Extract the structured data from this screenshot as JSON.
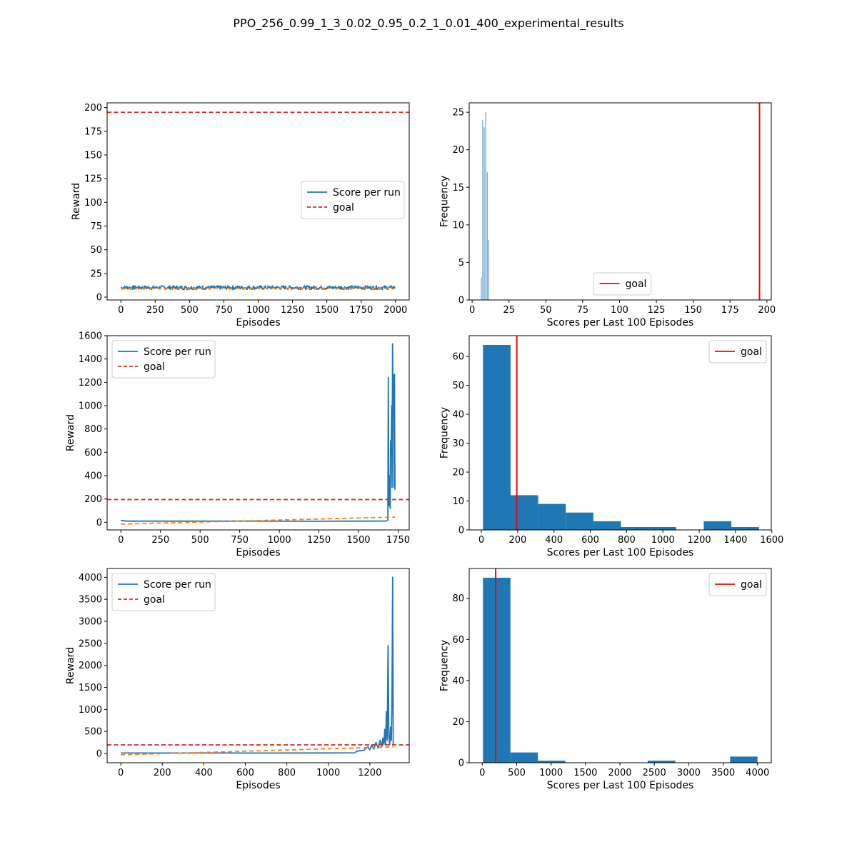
{
  "figure": {
    "suptitle": "PPO_256_0.99_1_3_0.02_0.95_0.2_1_0.01_400_experimental_results"
  },
  "colors": {
    "score": "#1f77b4",
    "trend": "#ff7f0e",
    "goal_dashed": "#d62728",
    "goal_line": "#ff0000",
    "hist": "#1f77b4"
  },
  "chart_data": [
    {
      "type": "line",
      "panel": "row1-left",
      "xlabel": "Episodes",
      "ylabel": "Reward",
      "xlim": [
        -100,
        2100
      ],
      "ylim": [
        -3,
        205
      ],
      "xticks": [
        0,
        250,
        500,
        750,
        1000,
        1250,
        1500,
        1750,
        2000
      ],
      "yticks": [
        0,
        25,
        50,
        75,
        100,
        125,
        150,
        175,
        200
      ],
      "goal": 195,
      "legend": {
        "position": "center-right",
        "entries": [
          "Score per run",
          "goal"
        ]
      },
      "score_series": {
        "name": "Score per run",
        "x_range": [
          0,
          2000
        ],
        "band": [
          8,
          12
        ]
      },
      "trend_series": {
        "start": [
          0,
          9.3
        ],
        "end": [
          2000,
          9.4
        ]
      }
    },
    {
      "type": "bar",
      "panel": "row1-right",
      "xlabel": "Scores per Last 100 Episodes",
      "ylabel": "Frequency",
      "xlim": [
        -2,
        203
      ],
      "ylim": [
        0,
        26.25
      ],
      "xticks": [
        0,
        25,
        50,
        75,
        100,
        125,
        150,
        175,
        200
      ],
      "yticks": [
        0,
        5,
        10,
        15,
        20,
        25
      ],
      "goal": 195,
      "legend": {
        "position": "lower-center",
        "entries": [
          "goal"
        ]
      },
      "bins": [
        {
          "x0": 6,
          "x1": 6.4,
          "count": 3
        },
        {
          "x0": 7,
          "x1": 7.4,
          "count": 24
        },
        {
          "x0": 8,
          "x1": 8.4,
          "count": 23
        },
        {
          "x0": 9,
          "x1": 9.4,
          "count": 25
        },
        {
          "x0": 10,
          "x1": 10.4,
          "count": 17
        },
        {
          "x0": 11,
          "x1": 11.4,
          "count": 8
        }
      ]
    },
    {
      "type": "line",
      "panel": "row2-left",
      "xlabel": "Episodes",
      "ylabel": "Reward",
      "xlim": [
        -87,
        1820
      ],
      "ylim": [
        -65,
        1600
      ],
      "xticks": [
        0,
        250,
        500,
        750,
        1000,
        1250,
        1500,
        1750
      ],
      "yticks": [
        0,
        200,
        400,
        600,
        800,
        1000,
        1200,
        1400,
        1600
      ],
      "goal": 195,
      "legend": {
        "position": "upper-left",
        "entries": [
          "Score per run",
          "goal"
        ]
      },
      "score_series": {
        "name": "Score per run",
        "points": [
          [
            0,
            15
          ],
          [
            40,
            10
          ],
          [
            300,
            10
          ],
          [
            800,
            10
          ],
          [
            1200,
            9
          ],
          [
            1500,
            10
          ],
          [
            1675,
            11
          ],
          [
            1685,
            20
          ],
          [
            1688,
            1240
          ],
          [
            1691,
            230
          ],
          [
            1694,
            140
          ],
          [
            1697,
            400
          ],
          [
            1700,
            120
          ],
          [
            1703,
            700
          ],
          [
            1706,
            600
          ],
          [
            1709,
            1000
          ],
          [
            1712,
            300
          ],
          [
            1715,
            1530
          ],
          [
            1718,
            900
          ],
          [
            1721,
            1260
          ],
          [
            1724,
            300
          ],
          [
            1727,
            1270
          ],
          [
            1730,
            280
          ]
        ]
      },
      "trend_series": {
        "start": [
          0,
          -15
        ],
        "end": [
          1730,
          45
        ]
      }
    },
    {
      "type": "bar",
      "panel": "row2-right",
      "xlabel": "Scores per Last 100 Episodes",
      "ylabel": "Frequency",
      "xlim": [
        -67,
        1597
      ],
      "ylim": [
        0,
        67.2
      ],
      "xticks": [
        0,
        200,
        400,
        600,
        800,
        1000,
        1200,
        1400,
        1600
      ],
      "yticks": [
        0,
        10,
        20,
        30,
        40,
        50,
        60
      ],
      "goal": 195,
      "legend": {
        "position": "upper-right",
        "entries": [
          "goal"
        ]
      },
      "bins": [
        {
          "x0": 9,
          "x1": 161,
          "count": 64
        },
        {
          "x0": 161,
          "x1": 313,
          "count": 12
        },
        {
          "x0": 313,
          "x1": 465,
          "count": 9
        },
        {
          "x0": 465,
          "x1": 617,
          "count": 6
        },
        {
          "x0": 617,
          "x1": 769,
          "count": 3
        },
        {
          "x0": 769,
          "x1": 921,
          "count": 1
        },
        {
          "x0": 921,
          "x1": 1073,
          "count": 1
        },
        {
          "x0": 1073,
          "x1": 1225,
          "count": 0
        },
        {
          "x0": 1225,
          "x1": 1377,
          "count": 3
        },
        {
          "x0": 1377,
          "x1": 1529,
          "count": 1
        }
      ]
    },
    {
      "type": "line",
      "panel": "row3-left",
      "xlabel": "Episodes",
      "ylabel": "Reward",
      "xlim": [
        -66,
        1390
      ],
      "ylim": [
        -210,
        4200
      ],
      "xticks": [
        0,
        200,
        400,
        600,
        800,
        1000,
        1200
      ],
      "yticks": [
        0,
        500,
        1000,
        1500,
        2000,
        2500,
        3000,
        3500,
        4000
      ],
      "goal": 195,
      "legend": {
        "position": "upper-left",
        "entries": [
          "Score per run",
          "goal"
        ]
      },
      "score_series": {
        "name": "Score per run",
        "points": [
          [
            0,
            10
          ],
          [
            500,
            10
          ],
          [
            1000,
            12
          ],
          [
            1130,
            15
          ],
          [
            1135,
            50
          ],
          [
            1150,
            60
          ],
          [
            1170,
            70
          ],
          [
            1190,
            150
          ],
          [
            1200,
            80
          ],
          [
            1210,
            200
          ],
          [
            1220,
            100
          ],
          [
            1230,
            250
          ],
          [
            1240,
            120
          ],
          [
            1250,
            300
          ],
          [
            1258,
            150
          ],
          [
            1263,
            350
          ],
          [
            1268,
            200
          ],
          [
            1272,
            550
          ],
          [
            1276,
            200
          ],
          [
            1280,
            950
          ],
          [
            1284,
            300
          ],
          [
            1288,
            2450
          ],
          [
            1292,
            400
          ],
          [
            1296,
            200
          ],
          [
            1300,
            600
          ],
          [
            1304,
            300
          ],
          [
            1307,
            1400
          ],
          [
            1310,
            4000
          ],
          [
            1313,
            180
          ]
        ]
      },
      "trend_series": {
        "start": [
          0,
          -30
        ],
        "end": [
          1313,
          150
        ]
      }
    },
    {
      "type": "bar",
      "panel": "row3-right",
      "xlabel": "Scores per Last 100 Episodes",
      "ylabel": "Frequency",
      "xlim": [
        -190,
        4200
      ],
      "ylim": [
        0,
        94.5
      ],
      "xticks": [
        0,
        500,
        1000,
        1500,
        2000,
        2500,
        3000,
        3500,
        4000
      ],
      "yticks": [
        0,
        20,
        40,
        60,
        80
      ],
      "goal": 195,
      "legend": {
        "position": "upper-right",
        "entries": [
          "goal"
        ]
      },
      "bins": [
        {
          "x0": 10,
          "x1": 409,
          "count": 90
        },
        {
          "x0": 409,
          "x1": 808,
          "count": 5
        },
        {
          "x0": 808,
          "x1": 1207,
          "count": 1
        },
        {
          "x0": 1207,
          "x1": 1606,
          "count": 0
        },
        {
          "x0": 1606,
          "x1": 2005,
          "count": 0
        },
        {
          "x0": 2005,
          "x1": 2404,
          "count": 0
        },
        {
          "x0": 2404,
          "x1": 2803,
          "count": 1
        },
        {
          "x0": 2803,
          "x1": 3202,
          "count": 0
        },
        {
          "x0": 3202,
          "x1": 3601,
          "count": 0
        },
        {
          "x0": 3601,
          "x1": 4000,
          "count": 3
        }
      ]
    }
  ]
}
